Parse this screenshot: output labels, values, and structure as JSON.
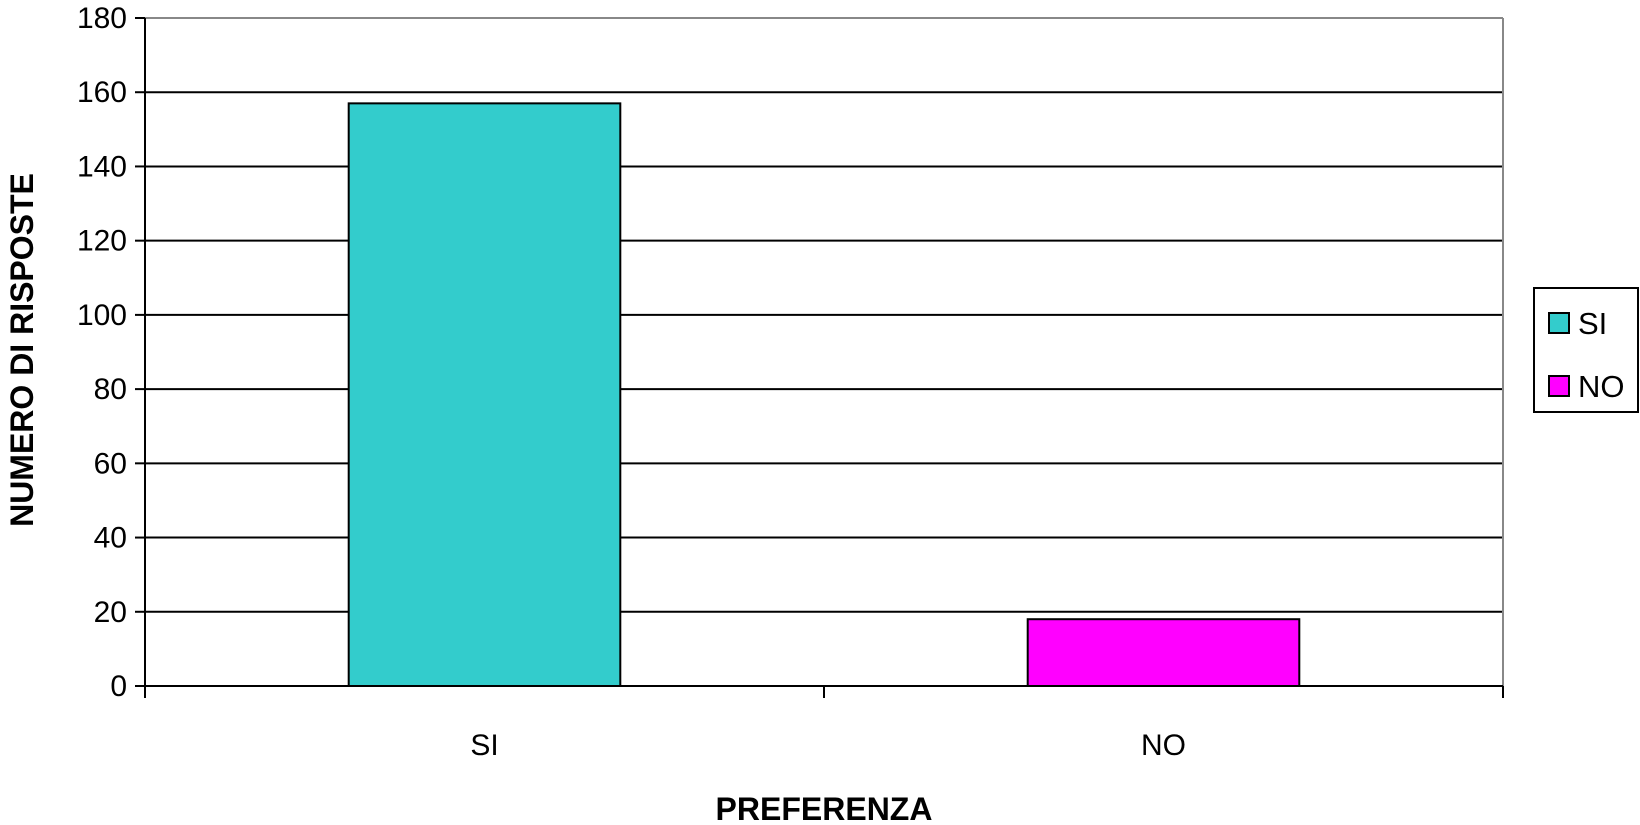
{
  "chart_data": {
    "type": "bar",
    "categories": [
      "SI",
      "NO"
    ],
    "series": [
      {
        "name": "SI",
        "values": [
          157,
          null
        ],
        "color": "#33CCCC"
      },
      {
        "name": "NO",
        "values": [
          null,
          18
        ],
        "color": "#FF00FF"
      }
    ],
    "xlabel": "PREFERENZA",
    "ylabel": "NUMERO DI RISPOSTE",
    "ylim": [
      0,
      180
    ],
    "ytick_step": 20,
    "grid": true,
    "legend": {
      "placement": "right",
      "items": [
        {
          "label": "SI",
          "color": "#33CCCC"
        },
        {
          "label": "NO",
          "color": "#FF00FF"
        }
      ]
    }
  }
}
